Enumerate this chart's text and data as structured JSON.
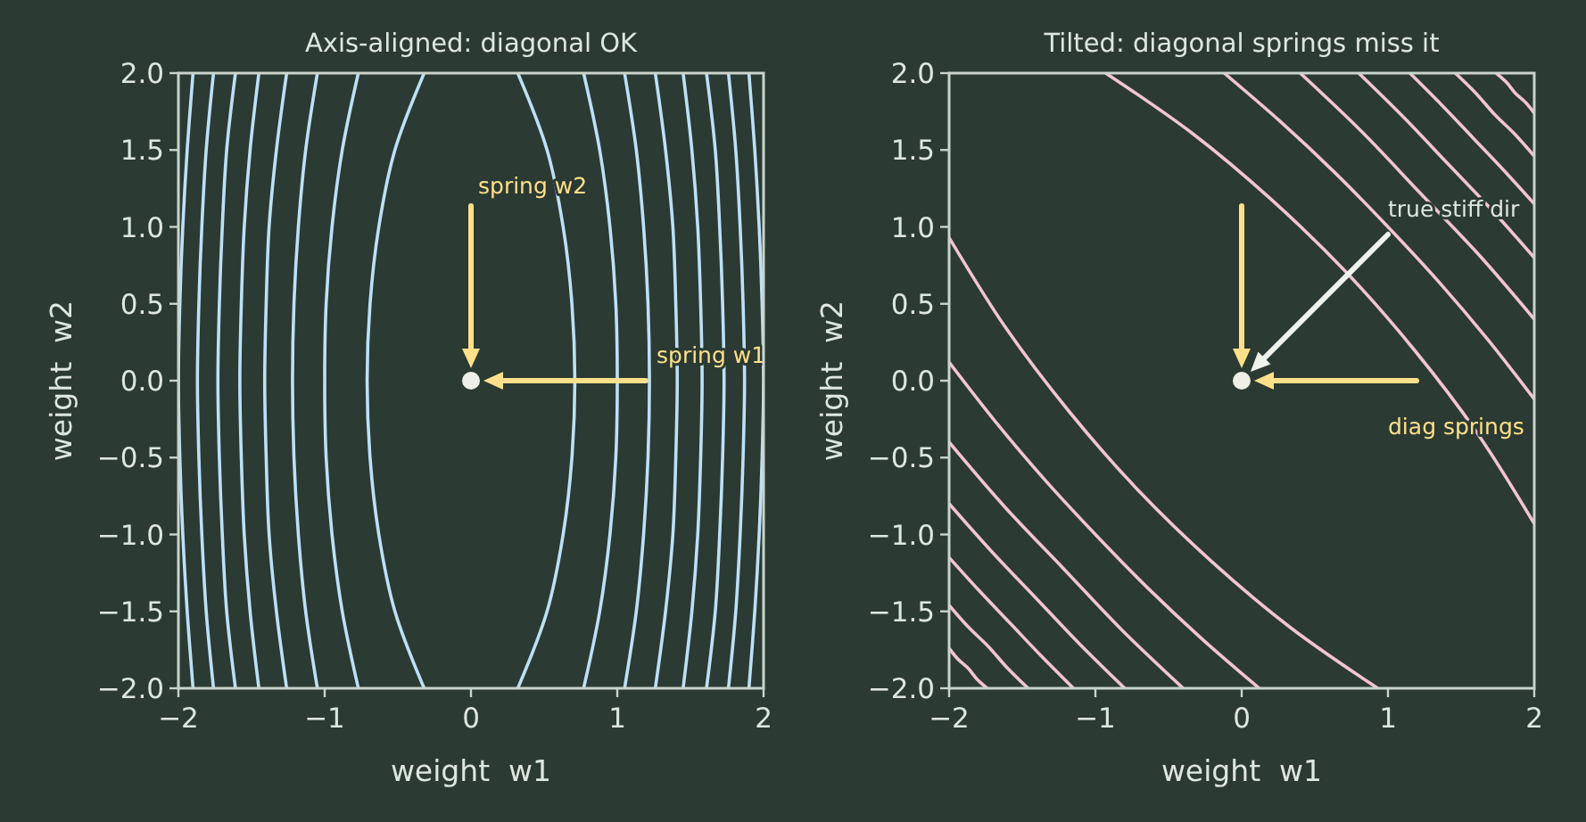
{
  "chart_data": [
    {
      "type": "line",
      "title": "Axis-aligned: diagonal OK",
      "xlabel": "weight  w1",
      "ylabel": "weight  w2",
      "xlim": [
        -2,
        2
      ],
      "ylim": [
        -2,
        2
      ],
      "xticks": [
        -2,
        -1,
        0,
        1,
        2
      ],
      "yticks": [
        {
          "value": -2,
          "label": "−2.0"
        },
        {
          "value": -1.5,
          "label": "−1.5"
        },
        {
          "value": -1,
          "label": "−1.0"
        },
        {
          "value": -0.5,
          "label": "−0.5"
        },
        {
          "value": 0,
          "label": "0.0"
        },
        {
          "value": 0.5,
          "label": "0.5"
        },
        {
          "value": 1,
          "label": "1.0"
        },
        {
          "value": 1.5,
          "label": "1.5"
        },
        {
          "value": 2,
          "label": "2.0"
        }
      ],
      "series": [
        {
          "color": "#bde0f5",
          "x": [
            0.32,
            0.52,
            0.63,
            0.69,
            0.71,
            0.69,
            0.63,
            0.52,
            0.32,
            null,
            -0.32,
            -0.52,
            -0.63,
            -0.69,
            -0.71,
            -0.69,
            -0.63,
            -0.52,
            -0.32
          ],
          "values": [
            -2,
            -1.5,
            -1,
            -0.5,
            0,
            0.5,
            1,
            1.5,
            2,
            null,
            -2,
            -1.5,
            -1,
            -0.5,
            0,
            0.5,
            1,
            1.5,
            2
          ]
        },
        {
          "color": "#bde0f5",
          "x": [
            0.77,
            0.88,
            0.95,
            0.99,
            1,
            0.99,
            0.95,
            0.88,
            0.77,
            null,
            -0.77,
            -0.88,
            -0.95,
            -0.99,
            -1,
            -0.99,
            -0.95,
            -0.88,
            -0.77
          ],
          "values": [
            -2,
            -1.5,
            -1,
            -0.5,
            0,
            0.5,
            1,
            1.5,
            2,
            null,
            -2,
            -1.5,
            -1,
            -0.5,
            0,
            0.5,
            1,
            1.5,
            2
          ]
        },
        {
          "color": "#bde0f5",
          "x": [
            1.05,
            1.13,
            1.18,
            1.21,
            1.22,
            1.21,
            1.18,
            1.13,
            1.05,
            null,
            -1.05,
            -1.13,
            -1.18,
            -1.21,
            -1.22,
            -1.21,
            -1.18,
            -1.13,
            -1.05
          ],
          "values": [
            -2,
            -1.5,
            -1,
            -0.5,
            0,
            0.5,
            1,
            1.5,
            2,
            null,
            -2,
            -1.5,
            -1,
            -0.5,
            0,
            0.5,
            1,
            1.5,
            2
          ]
        },
        {
          "color": "#bde0f5",
          "x": [
            1.26,
            1.33,
            1.38,
            1.4,
            1.41,
            1.4,
            1.38,
            1.33,
            1.26,
            null,
            -1.26,
            -1.33,
            -1.38,
            -1.4,
            -1.41,
            -1.4,
            -1.38,
            -1.33,
            -1.26
          ],
          "values": [
            -2,
            -1.5,
            -1,
            -0.5,
            0,
            0.5,
            1,
            1.5,
            2,
            null,
            -2,
            -1.5,
            -1,
            -0.5,
            0,
            0.5,
            1,
            1.5,
            2
          ]
        },
        {
          "color": "#bde0f5",
          "x": [
            1.45,
            1.51,
            1.55,
            1.57,
            1.58,
            1.57,
            1.55,
            1.51,
            1.45,
            null,
            -1.45,
            -1.51,
            -1.55,
            -1.57,
            -1.58,
            -1.57,
            -1.55,
            -1.51,
            -1.45
          ],
          "values": [
            -2,
            -1.5,
            -1,
            -0.5,
            0,
            0.5,
            1,
            1.5,
            2,
            null,
            -2,
            -1.5,
            -1,
            -0.5,
            0,
            0.5,
            1,
            1.5,
            2
          ]
        },
        {
          "color": "#bde0f5",
          "x": [
            1.61,
            1.67,
            1.7,
            1.72,
            1.73,
            1.72,
            1.7,
            1.67,
            1.61,
            null,
            -1.61,
            -1.67,
            -1.7,
            -1.72,
            -1.73,
            -1.72,
            -1.7,
            -1.67,
            -1.61
          ],
          "values": [
            -2,
            -1.5,
            -1,
            -0.5,
            0,
            0.5,
            1,
            1.5,
            2,
            null,
            -2,
            -1.5,
            -1,
            -0.5,
            0,
            0.5,
            1,
            1.5,
            2
          ]
        },
        {
          "color": "#bde0f5",
          "x": [
            1.76,
            1.81,
            1.84,
            1.86,
            1.87,
            1.86,
            1.84,
            1.81,
            1.76,
            null,
            -1.76,
            -1.81,
            -1.84,
            -1.86,
            -1.87,
            -1.86,
            -1.84,
            -1.81,
            -1.76
          ],
          "values": [
            -2,
            -1.5,
            -1,
            -0.5,
            0,
            0.5,
            1,
            1.5,
            2,
            null,
            -2,
            -1.5,
            -1,
            -0.5,
            0,
            0.5,
            1,
            1.5,
            2
          ]
        },
        {
          "color": "#bde0f5",
          "x": [
            1.9,
            1.94,
            1.97,
            1.99,
            2,
            1.99,
            1.97,
            1.94,
            1.9,
            null,
            -1.9,
            -1.94,
            -1.97,
            -1.99,
            -2,
            -1.99,
            -1.97,
            -1.94,
            -1.9
          ],
          "values": [
            -2,
            -1.5,
            -1,
            -0.5,
            0,
            0.5,
            1,
            1.5,
            2,
            null,
            -2,
            -1.5,
            -1,
            -0.5,
            0,
            0.5,
            1,
            1.5,
            2
          ]
        },
        {
          "type": "scatter",
          "marker": "circle",
          "color": "#eef0e8",
          "x": [
            0
          ],
          "values": [
            0
          ]
        }
      ],
      "annotations": [
        "spring w2",
        "spring w1"
      ]
    },
    {
      "type": "line",
      "title": "Tilted: diagonal springs miss it",
      "xlabel": "weight  w1",
      "ylabel": "weight  w2",
      "xlim": [
        -2,
        2
      ],
      "ylim": [
        -2,
        2
      ],
      "xticks": [
        -2,
        -1,
        0,
        1,
        2
      ],
      "yticks": [
        {
          "value": -2,
          "label": "−2.0"
        },
        {
          "value": -1.5,
          "label": "−1.5"
        },
        {
          "value": -1,
          "label": "−1.0"
        },
        {
          "value": -0.5,
          "label": "−0.5"
        },
        {
          "value": 0,
          "label": "0.0"
        },
        {
          "value": 0.5,
          "label": "0.5"
        },
        {
          "value": 1,
          "label": "1.0"
        },
        {
          "value": 1.5,
          "label": "1.5"
        },
        {
          "value": 2,
          "label": "2.0"
        }
      ],
      "series": [
        {
          "color": "#f2c4d2",
          "x": [
            -0.93,
            -0.34,
            0.2,
            0.71,
            1.18,
            1.61,
            2,
            null,
            0.93,
            0.34,
            -0.2,
            -0.71,
            -1.18,
            -1.61,
            -2
          ],
          "values": [
            2,
            1.61,
            1.18,
            0.71,
            0.2,
            -0.34,
            -0.93,
            null,
            -2,
            -1.61,
            -1.18,
            -0.71,
            -0.2,
            0.34,
            0.93
          ]
        },
        {
          "color": "#f2c4d2",
          "x": [
            -0.12,
            0.27,
            0.64,
            1,
            1.35,
            1.68,
            2,
            null,
            0.12,
            -0.27,
            -0.64,
            -1,
            -1.35,
            -1.68,
            -2
          ],
          "values": [
            2,
            1.68,
            1.35,
            1,
            0.64,
            0.27,
            -0.12,
            null,
            -2,
            -1.68,
            -1.35,
            -1,
            -0.64,
            -0.27,
            0.12
          ]
        },
        {
          "color": "#f2c4d2",
          "x": [
            0.4,
            0.82,
            1.22,
            1.62,
            2,
            null,
            -0.4,
            -0.82,
            -1.22,
            -1.62,
            -2
          ],
          "values": [
            2,
            1.62,
            1.22,
            0.82,
            0.4,
            null,
            -2,
            -1.62,
            -1.22,
            -0.82,
            -0.4
          ]
        },
        {
          "color": "#f2c4d2",
          "x": [
            0.8,
            1.11,
            1.41,
            1.71,
            2,
            null,
            -0.8,
            -1.11,
            -1.41,
            -1.71,
            -2
          ],
          "values": [
            2,
            1.71,
            1.41,
            1.11,
            0.8,
            null,
            -2,
            -1.71,
            -1.41,
            -1.11,
            -0.8
          ]
        },
        {
          "color": "#f2c4d2",
          "x": [
            1.15,
            1.37,
            1.58,
            1.79,
            2,
            null,
            -1.15,
            -1.37,
            -1.58,
            -1.79,
            -2
          ],
          "values": [
            2,
            1.79,
            1.58,
            1.37,
            1.15,
            null,
            -2,
            -1.79,
            -1.58,
            -1.37,
            -1.15
          ]
        },
        {
          "color": "#f2c4d2",
          "x": [
            1.46,
            1.6,
            1.73,
            1.87,
            2,
            null,
            -1.46,
            -1.6,
            -1.73,
            -1.87,
            -2
          ],
          "values": [
            2,
            1.87,
            1.73,
            1.6,
            1.46,
            null,
            -2,
            -1.87,
            -1.73,
            -1.6,
            -1.46
          ]
        },
        {
          "color": "#f2c4d2",
          "x": [
            1.74,
            1.81,
            1.87,
            1.94,
            2,
            null,
            -1.74,
            -1.81,
            -1.87,
            -1.94,
            -2
          ],
          "values": [
            2,
            1.94,
            1.87,
            1.81,
            1.74,
            null,
            -2,
            -1.94,
            -1.87,
            -1.81,
            -1.74
          ]
        },
        {
          "type": "scatter",
          "marker": "circle",
          "color": "#eef0e8",
          "x": [
            0
          ],
          "values": [
            0
          ]
        }
      ],
      "annotations": [
        "true stiff dir",
        "diag springs"
      ]
    }
  ]
}
